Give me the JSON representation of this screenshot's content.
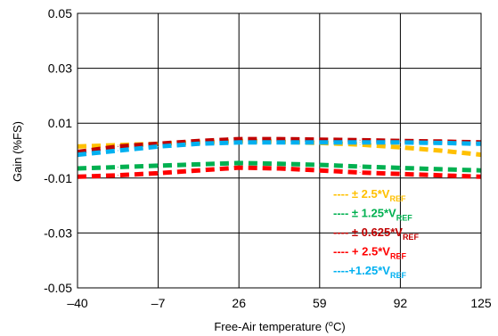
{
  "chart_data": {
    "type": "line",
    "xlabel": "Free-Air temperature (",
    "xlabel_sup": "o",
    "xlabel_end": "C)",
    "ylabel": "Gain (%FS)",
    "x_ticks": [
      {
        "value": -40,
        "label": "–40"
      },
      {
        "value": -7,
        "label": "–7"
      },
      {
        "value": 26,
        "label": "26"
      },
      {
        "value": 59,
        "label": "59"
      },
      {
        "value": 92,
        "label": "92"
      },
      {
        "value": 125,
        "label": "125"
      }
    ],
    "y_ticks": [
      {
        "value": -0.05,
        "label": "-0.05"
      },
      {
        "value": -0.03,
        "label": "-0.03"
      },
      {
        "value": -0.01,
        "label": "-0.01"
      },
      {
        "value": 0.01,
        "label": "0.01"
      },
      {
        "value": 0.03,
        "label": "0.03"
      },
      {
        "value": 0.05,
        "label": "0.05"
      }
    ],
    "xlim": [
      -40,
      125
    ],
    "ylim": [
      -0.05,
      0.05
    ],
    "grid": true,
    "legend_position": "bottom-right",
    "x": [
      -40,
      -23.5,
      -7,
      9.5,
      26,
      42.5,
      59,
      75.5,
      92,
      108.5,
      125
    ],
    "series": [
      {
        "legend_prefix": "---- ± 2.5*V",
        "legend_sub": "REF",
        "color": "#FFC000",
        "values": [
          0.0015,
          0.002,
          0.0025,
          0.003,
          0.0035,
          0.0032,
          0.0028,
          0.0022,
          0.0012,
          0.0,
          -0.0015
        ]
      },
      {
        "legend_prefix": "---- ± 1.25*V",
        "legend_sub": "REF",
        "color": "#00B050",
        "values": [
          -0.0065,
          -0.006,
          -0.0055,
          -0.005,
          -0.0045,
          -0.0048,
          -0.0052,
          -0.0058,
          -0.0063,
          -0.0068,
          -0.0072
        ]
      },
      {
        "legend_prefix": "---- ± 0.625*V",
        "legend_sub": "REF",
        "color": "#C00000",
        "values": [
          -0.0005,
          0.0015,
          0.0025,
          0.0035,
          0.0042,
          0.0042,
          0.004,
          0.0038,
          0.0035,
          0.0033,
          0.003
        ]
      },
      {
        "legend_prefix": "---- + 2.5*V",
        "legend_sub": "REF",
        "color": "#FF0000",
        "values": [
          -0.0095,
          -0.009,
          -0.0082,
          -0.0072,
          -0.0062,
          -0.0065,
          -0.0072,
          -0.008,
          -0.0085,
          -0.009,
          -0.0095
        ]
      },
      {
        "legend_prefix": "----+1.25*V",
        "legend_sub": "REF",
        "color": "#00B0F0",
        "values": [
          -0.0015,
          0.0,
          0.0015,
          0.0025,
          0.003,
          0.003,
          0.003,
          0.003,
          0.003,
          0.0028,
          0.0025
        ]
      }
    ]
  }
}
